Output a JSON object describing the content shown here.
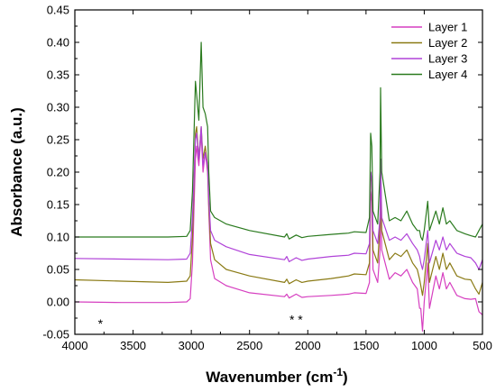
{
  "chart_data": {
    "type": "line",
    "xlabel": "Wavenumber (cm",
    "xlabel_sup": "-1",
    "xlabel_end": ")",
    "ylabel": "Absorbance (a.u.)",
    "xlim": [
      4000,
      500
    ],
    "ylim": [
      -0.05,
      0.45
    ],
    "x_reversed": true,
    "xticks": [
      4000,
      3500,
      3000,
      2500,
      2000,
      1500,
      1000,
      500
    ],
    "yticks": [
      -0.05,
      0.0,
      0.05,
      0.1,
      0.15,
      0.2,
      0.25,
      0.3,
      0.35,
      0.4,
      0.45
    ],
    "ytick_labels": [
      "-0.05",
      "0.00",
      "0.05",
      "0.10",
      "0.15",
      "0.20",
      "0.25",
      "0.30",
      "0.35",
      "0.40",
      "0.45"
    ],
    "legend_position": "top-right",
    "grid": false,
    "annotations": [
      {
        "text": "*",
        "x": 3780,
        "y": -0.033
      },
      {
        "text": "* *",
        "x": 2100,
        "y": -0.027
      }
    ],
    "series": [
      {
        "name": "Layer 1",
        "color": "#d63fc0",
        "points": [
          [
            4000,
            0.0
          ],
          [
            3600,
            -0.001
          ],
          [
            3200,
            -0.001
          ],
          [
            3040,
            0.0
          ],
          [
            3010,
            0.005
          ],
          [
            2990,
            0.06
          ],
          [
            2965,
            0.22
          ],
          [
            2955,
            0.24
          ],
          [
            2935,
            0.21
          ],
          [
            2915,
            0.26
          ],
          [
            2900,
            0.2
          ],
          [
            2880,
            0.23
          ],
          [
            2860,
            0.2
          ],
          [
            2850,
            0.14
          ],
          [
            2835,
            0.065
          ],
          [
            2800,
            0.036
          ],
          [
            2700,
            0.025
          ],
          [
            2500,
            0.014
          ],
          [
            2200,
            0.008
          ],
          [
            2180,
            0.012
          ],
          [
            2160,
            0.006
          ],
          [
            2100,
            0.012
          ],
          [
            2050,
            0.007
          ],
          [
            2000,
            0.008
          ],
          [
            1800,
            0.01
          ],
          [
            1650,
            0.012
          ],
          [
            1600,
            0.014
          ],
          [
            1500,
            0.013
          ],
          [
            1470,
            0.03
          ],
          [
            1460,
            0.17
          ],
          [
            1450,
            0.155
          ],
          [
            1440,
            0.05
          ],
          [
            1400,
            0.03
          ],
          [
            1380,
            0.08
          ],
          [
            1375,
            0.19
          ],
          [
            1365,
            0.08
          ],
          [
            1300,
            0.035
          ],
          [
            1250,
            0.045
          ],
          [
            1200,
            0.04
          ],
          [
            1150,
            0.05
          ],
          [
            1100,
            0.03
          ],
          [
            1060,
            0.02
          ],
          [
            1040,
            -0.01
          ],
          [
            1030,
            -0.01
          ],
          [
            1015,
            -0.045
          ],
          [
            1000,
            0.0
          ],
          [
            970,
            0.06
          ],
          [
            955,
            -0.01
          ],
          [
            900,
            0.04
          ],
          [
            870,
            0.02
          ],
          [
            840,
            0.045
          ],
          [
            810,
            0.02
          ],
          [
            780,
            0.03
          ],
          [
            720,
            0.01
          ],
          [
            650,
            0.005
          ],
          [
            600,
            0.004
          ],
          [
            560,
            0.005
          ],
          [
            530,
            -0.015
          ],
          [
            500,
            -0.02
          ]
        ]
      },
      {
        "name": "Layer 2",
        "color": "#8a7a14",
        "points": [
          [
            4000,
            0.034
          ],
          [
            3600,
            0.032
          ],
          [
            3200,
            0.03
          ],
          [
            3040,
            0.032
          ],
          [
            3010,
            0.04
          ],
          [
            2990,
            0.1
          ],
          [
            2965,
            0.26
          ],
          [
            2955,
            0.27
          ],
          [
            2935,
            0.22
          ],
          [
            2915,
            0.27
          ],
          [
            2900,
            0.22
          ],
          [
            2880,
            0.24
          ],
          [
            2860,
            0.21
          ],
          [
            2850,
            0.15
          ],
          [
            2835,
            0.09
          ],
          [
            2800,
            0.065
          ],
          [
            2700,
            0.05
          ],
          [
            2500,
            0.04
          ],
          [
            2200,
            0.03
          ],
          [
            2180,
            0.035
          ],
          [
            2160,
            0.028
          ],
          [
            2100,
            0.034
          ],
          [
            2050,
            0.03
          ],
          [
            2000,
            0.032
          ],
          [
            1800,
            0.036
          ],
          [
            1650,
            0.04
          ],
          [
            1600,
            0.043
          ],
          [
            1500,
            0.042
          ],
          [
            1470,
            0.06
          ],
          [
            1460,
            0.2
          ],
          [
            1450,
            0.185
          ],
          [
            1440,
            0.08
          ],
          [
            1400,
            0.06
          ],
          [
            1380,
            0.12
          ],
          [
            1375,
            0.22
          ],
          [
            1365,
            0.11
          ],
          [
            1300,
            0.065
          ],
          [
            1250,
            0.075
          ],
          [
            1200,
            0.07
          ],
          [
            1150,
            0.08
          ],
          [
            1100,
            0.06
          ],
          [
            1060,
            0.05
          ],
          [
            1040,
            0.035
          ],
          [
            1030,
            0.025
          ],
          [
            1015,
            0.01
          ],
          [
            1000,
            0.03
          ],
          [
            970,
            0.09
          ],
          [
            955,
            0.03
          ],
          [
            900,
            0.07
          ],
          [
            870,
            0.05
          ],
          [
            840,
            0.075
          ],
          [
            810,
            0.05
          ],
          [
            780,
            0.06
          ],
          [
            720,
            0.04
          ],
          [
            650,
            0.035
          ],
          [
            600,
            0.034
          ],
          [
            560,
            0.02
          ],
          [
            530,
            0.012
          ],
          [
            500,
            0.03
          ]
        ]
      },
      {
        "name": "Layer 3",
        "color": "#b042d8",
        "points": [
          [
            4000,
            0.067
          ],
          [
            3600,
            0.066
          ],
          [
            3200,
            0.065
          ],
          [
            3040,
            0.066
          ],
          [
            3010,
            0.075
          ],
          [
            2990,
            0.13
          ],
          [
            2965,
            0.25
          ],
          [
            2955,
            0.26
          ],
          [
            2935,
            0.22
          ],
          [
            2915,
            0.27
          ],
          [
            2900,
            0.21
          ],
          [
            2880,
            0.23
          ],
          [
            2860,
            0.21
          ],
          [
            2850,
            0.16
          ],
          [
            2835,
            0.11
          ],
          [
            2800,
            0.095
          ],
          [
            2700,
            0.085
          ],
          [
            2500,
            0.073
          ],
          [
            2200,
            0.065
          ],
          [
            2180,
            0.07
          ],
          [
            2160,
            0.062
          ],
          [
            2100,
            0.068
          ],
          [
            2050,
            0.064
          ],
          [
            2000,
            0.066
          ],
          [
            1800,
            0.07
          ],
          [
            1650,
            0.072
          ],
          [
            1600,
            0.075
          ],
          [
            1500,
            0.074
          ],
          [
            1470,
            0.09
          ],
          [
            1460,
            0.2
          ],
          [
            1450,
            0.19
          ],
          [
            1440,
            0.11
          ],
          [
            1400,
            0.09
          ],
          [
            1380,
            0.13
          ],
          [
            1375,
            0.22
          ],
          [
            1365,
            0.13
          ],
          [
            1300,
            0.095
          ],
          [
            1250,
            0.1
          ],
          [
            1200,
            0.095
          ],
          [
            1150,
            0.105
          ],
          [
            1100,
            0.09
          ],
          [
            1060,
            0.08
          ],
          [
            1040,
            0.07
          ],
          [
            1030,
            0.06
          ],
          [
            1015,
            0.05
          ],
          [
            1000,
            0.065
          ],
          [
            970,
            0.11
          ],
          [
            955,
            0.06
          ],
          [
            900,
            0.095
          ],
          [
            870,
            0.08
          ],
          [
            840,
            0.1
          ],
          [
            810,
            0.08
          ],
          [
            780,
            0.09
          ],
          [
            720,
            0.075
          ],
          [
            650,
            0.07
          ],
          [
            600,
            0.068
          ],
          [
            560,
            0.06
          ],
          [
            530,
            0.05
          ],
          [
            500,
            0.065
          ]
        ]
      },
      {
        "name": "Layer 4",
        "color": "#2a7a1e",
        "points": [
          [
            4000,
            0.1
          ],
          [
            3600,
            0.1
          ],
          [
            3200,
            0.1
          ],
          [
            3040,
            0.101
          ],
          [
            3010,
            0.11
          ],
          [
            2990,
            0.17
          ],
          [
            2965,
            0.34
          ],
          [
            2955,
            0.32
          ],
          [
            2935,
            0.28
          ],
          [
            2915,
            0.4
          ],
          [
            2900,
            0.3
          ],
          [
            2880,
            0.29
          ],
          [
            2860,
            0.27
          ],
          [
            2850,
            0.2
          ],
          [
            2835,
            0.14
          ],
          [
            2800,
            0.13
          ],
          [
            2700,
            0.12
          ],
          [
            2500,
            0.11
          ],
          [
            2200,
            0.1
          ],
          [
            2180,
            0.105
          ],
          [
            2160,
            0.097
          ],
          [
            2100,
            0.103
          ],
          [
            2050,
            0.099
          ],
          [
            2000,
            0.101
          ],
          [
            1800,
            0.104
          ],
          [
            1650,
            0.106
          ],
          [
            1600,
            0.108
          ],
          [
            1500,
            0.107
          ],
          [
            1470,
            0.13
          ],
          [
            1460,
            0.26
          ],
          [
            1450,
            0.24
          ],
          [
            1440,
            0.14
          ],
          [
            1400,
            0.12
          ],
          [
            1380,
            0.2
          ],
          [
            1375,
            0.33
          ],
          [
            1365,
            0.2
          ],
          [
            1300,
            0.125
          ],
          [
            1250,
            0.13
          ],
          [
            1200,
            0.125
          ],
          [
            1150,
            0.14
          ],
          [
            1100,
            0.12
          ],
          [
            1060,
            0.11
          ],
          [
            1040,
            0.11
          ],
          [
            1030,
            0.1
          ],
          [
            1015,
            0.095
          ],
          [
            1000,
            0.11
          ],
          [
            970,
            0.155
          ],
          [
            955,
            0.11
          ],
          [
            900,
            0.14
          ],
          [
            870,
            0.12
          ],
          [
            840,
            0.145
          ],
          [
            810,
            0.12
          ],
          [
            780,
            0.125
          ],
          [
            720,
            0.11
          ],
          [
            650,
            0.105
          ],
          [
            600,
            0.102
          ],
          [
            560,
            0.1
          ],
          [
            530,
            0.11
          ],
          [
            500,
            0.12
          ]
        ]
      }
    ]
  }
}
